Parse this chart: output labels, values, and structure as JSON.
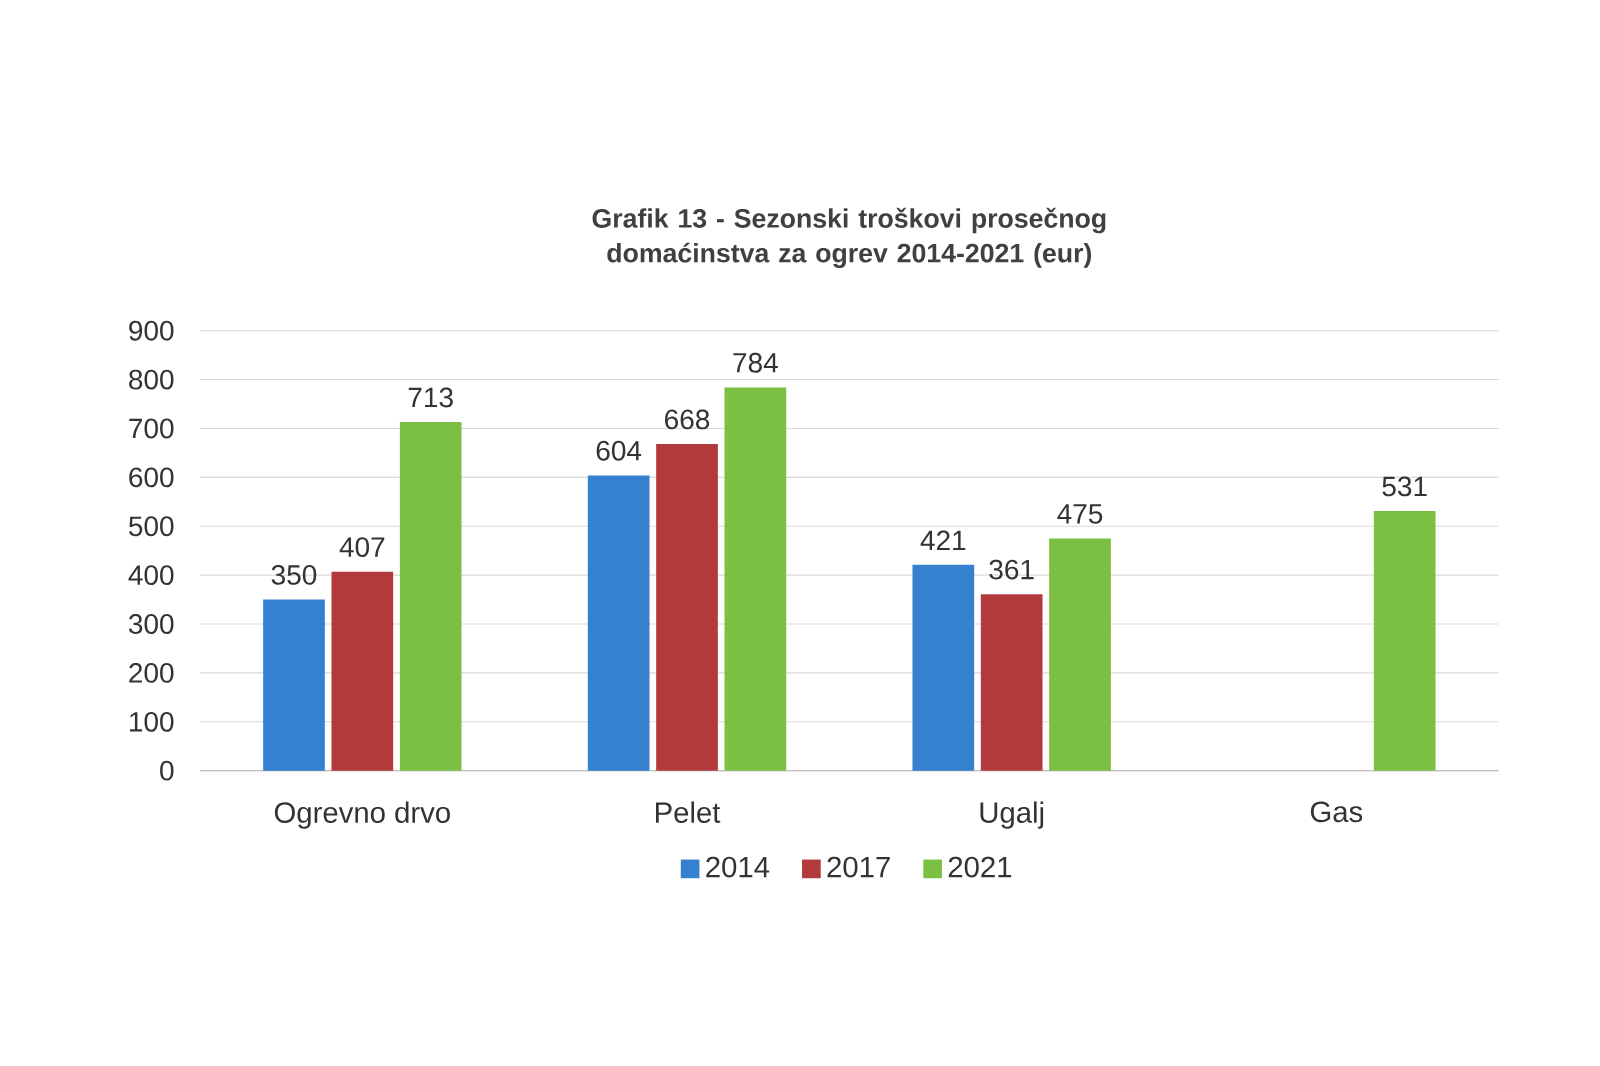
{
  "chart_data": {
    "type": "bar",
    "title": "Grafik 13 - Sezonski troškovi prosečnog domaćinstva za ogrev 2014-2021 (eur)",
    "categories": [
      "Ogrevno drvo",
      "Pelet",
      "Ugalj",
      "Gas"
    ],
    "series": [
      {
        "name": "2014",
        "color": "#3580cf",
        "values": [
          350,
          604,
          421,
          null
        ]
      },
      {
        "name": "2017",
        "color": "#b23a3c",
        "values": [
          407,
          668,
          361,
          null
        ]
      },
      {
        "name": "2021",
        "color": "#7cc043",
        "values": [
          713,
          784,
          475,
          531
        ]
      }
    ],
    "ylim": [
      0,
      900
    ],
    "yticks": [
      0,
      100,
      200,
      300,
      400,
      500,
      600,
      700,
      800,
      900
    ],
    "grid": "y",
    "legend": "bottom",
    "data_labels": true
  }
}
